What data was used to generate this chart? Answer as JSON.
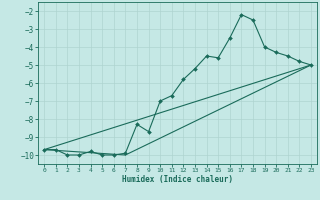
{
  "xlabel": "Humidex (Indice chaleur)",
  "background_color": "#c5e8e5",
  "grid_color": "#afd4d0",
  "line_color": "#1a6b5a",
  "xlim": [
    -0.5,
    23.5
  ],
  "ylim": [
    -10.5,
    -1.5
  ],
  "yticks": [
    -10,
    -9,
    -8,
    -7,
    -6,
    -5,
    -4,
    -3,
    -2
  ],
  "xticks": [
    0,
    1,
    2,
    3,
    4,
    5,
    6,
    7,
    8,
    9,
    10,
    11,
    12,
    13,
    14,
    15,
    16,
    17,
    18,
    19,
    20,
    21,
    22,
    23
  ],
  "series_main": {
    "x": [
      0,
      1,
      2,
      3,
      4,
      5,
      6,
      7,
      8,
      9,
      10,
      11,
      12,
      13,
      14,
      15,
      16,
      17,
      18,
      19,
      20,
      21,
      22,
      23
    ],
    "y": [
      -9.7,
      -9.7,
      -10.0,
      -10.0,
      -9.8,
      -10.0,
      -10.0,
      -9.9,
      -8.3,
      -8.7,
      -7.0,
      -6.7,
      -5.8,
      -5.2,
      -4.5,
      -4.6,
      -3.5,
      -2.2,
      -2.5,
      -4.0,
      -4.3,
      -4.5,
      -4.8,
      -5.0
    ]
  },
  "series_line1": {
    "x": [
      0,
      23
    ],
    "y": [
      -9.7,
      -5.0
    ]
  },
  "series_line2": {
    "x": [
      0,
      7,
      23
    ],
    "y": [
      -9.7,
      -10.0,
      -5.0
    ]
  }
}
